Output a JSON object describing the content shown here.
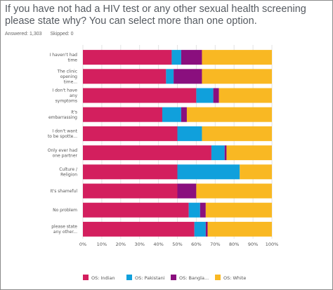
{
  "survey": {
    "question": "If you have not had a HIV test or any other sexual health screening please state why? You can select more than one option.",
    "answered": "Answered: 1,303",
    "skipped": "Skipped: 0"
  },
  "chart_data": {
    "type": "bar",
    "orientation": "horizontal",
    "stacked": "percent",
    "categories": [
      [
        "I haven't had",
        "time"
      ],
      [
        "The clinic",
        "opening",
        "time..."
      ],
      [
        "I don't have",
        "any",
        "symptoms"
      ],
      [
        "It's",
        "embarrassing"
      ],
      [
        "I don't want",
        "to be spotte..."
      ],
      [
        "Only ever had",
        "one partner"
      ],
      [
        "Culture /",
        "Religion"
      ],
      [
        "It's shameful"
      ],
      [
        "No problem"
      ],
      [
        "please state",
        "any other..."
      ]
    ],
    "series": [
      {
        "name": "OS: Indian",
        "color": "#d31f5e",
        "values": [
          47,
          44,
          60,
          42,
          50,
          68,
          50,
          50,
          56,
          59
        ]
      },
      {
        "name": "OS: Pakistani",
        "color": "#10a0dc",
        "values": [
          5,
          4,
          9,
          10,
          13,
          7,
          33,
          0,
          6,
          6
        ]
      },
      {
        "name": "OS: Bangla...",
        "color": "#8a0f7e",
        "values": [
          11,
          15,
          3,
          3,
          0,
          1,
          0,
          10,
          3,
          1
        ]
      },
      {
        "name": "OS: White",
        "color": "#f9b823",
        "values": [
          37,
          37,
          28,
          45,
          37,
          24,
          17,
          40,
          35,
          34
        ]
      }
    ],
    "x_ticks": [
      "0%",
      "10%",
      "20%",
      "30%",
      "40%",
      "50%",
      "60%",
      "70%",
      "80%",
      "90%",
      "100%"
    ],
    "xlim": [
      0,
      100
    ],
    "grid": true,
    "legend_position": "bottom"
  }
}
